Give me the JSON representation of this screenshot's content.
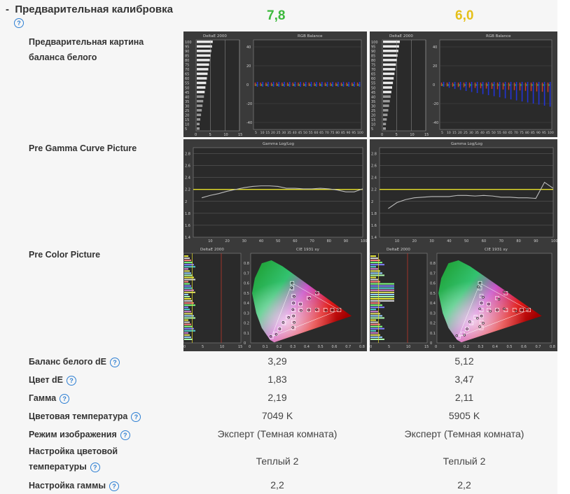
{
  "section": {
    "title": "Предварительная калибровка",
    "collapse": "-"
  },
  "scores": [
    {
      "value": "7,8",
      "color": "#3cb93c"
    },
    {
      "value": "6,0",
      "color": "#e5c019"
    }
  ],
  "rows": {
    "pre_wb_picture": "Предварительная картина баланса белого",
    "pre_gamma_picture": "Pre Gamma Curve Picture",
    "pre_color_picture": "Pre Color Picture"
  },
  "charts": {
    "deltae_title": "DeltaE 2000",
    "rgb_title": "RGB Balance",
    "gamma_title": "Gamma Log/Log",
    "cie_title": "CIE 1931 xy",
    "deltae_y_ticks": [
      "100",
      "95",
      "90",
      "85",
      "80",
      "75",
      "70",
      "65",
      "60",
      "55",
      "50",
      "45",
      "40",
      "35",
      "30",
      "25",
      "20",
      "15",
      "10",
      "5"
    ],
    "deltae_x_ticks": [
      "0",
      "5",
      "10",
      "15"
    ],
    "rgb_y_ticks": [
      "40",
      "20",
      "0",
      "-20",
      "-40"
    ],
    "rgb_x_ticks": [
      "5",
      "10",
      "15",
      "20",
      "25",
      "30",
      "35",
      "40",
      "45",
      "50",
      "55",
      "60",
      "65",
      "70",
      "75",
      "80",
      "85",
      "90",
      "95",
      "100"
    ],
    "gamma_y_ticks": [
      "2.8",
      "2.6",
      "2.4",
      "2.2",
      "2",
      "1.8",
      "1.6",
      "1.4"
    ],
    "gamma_x_ticks": [
      "10",
      "20",
      "30",
      "40",
      "50",
      "60",
      "70",
      "80",
      "90",
      "100"
    ],
    "cie_y_ticks": [
      "0.8",
      "0.7",
      "0.6",
      "0.5",
      "0.4",
      "0.3",
      "0.2",
      "0.1",
      "0"
    ],
    "cie_x_ticks": [
      "0",
      "0.1",
      "0.2",
      "0.3",
      "0.4",
      "0.5",
      "0.6",
      "0.7",
      "0.8"
    ]
  },
  "chart_data": [
    {
      "type": "line",
      "title": "Gamma Log/Log",
      "display": "1",
      "x": [
        5,
        10,
        15,
        20,
        25,
        30,
        35,
        40,
        45,
        50,
        55,
        60,
        65,
        70,
        75,
        80,
        85,
        90,
        95,
        100
      ],
      "values": [
        2.06,
        2.1,
        2.13,
        2.17,
        2.2,
        2.23,
        2.25,
        2.26,
        2.26,
        2.25,
        2.22,
        2.22,
        2.21,
        2.21,
        2.22,
        2.21,
        2.19,
        2.16,
        2.16,
        2.21
      ],
      "target": 2.2,
      "ylim": [
        1.4,
        2.9
      ],
      "xlim": [
        0,
        100
      ]
    },
    {
      "type": "line",
      "title": "Gamma Log/Log",
      "display": "2",
      "x": [
        5,
        10,
        15,
        20,
        25,
        30,
        35,
        40,
        45,
        50,
        55,
        60,
        65,
        70,
        75,
        80,
        85,
        90,
        95,
        100
      ],
      "values": [
        1.88,
        1.98,
        2.03,
        2.06,
        2.07,
        2.08,
        2.08,
        2.08,
        2.1,
        2.1,
        2.09,
        2.1,
        2.09,
        2.07,
        2.07,
        2.06,
        2.06,
        2.05,
        2.32,
        2.22
      ],
      "target": 2.2,
      "ylim": [
        1.4,
        2.9
      ],
      "xlim": [
        0,
        100
      ]
    }
  ],
  "metrics": [
    {
      "label": "Баланс белого dE",
      "help": true,
      "v1": "3,29",
      "v2": "5,12"
    },
    {
      "label": "Цвет dE",
      "help": true,
      "v1": "1,83",
      "v2": "3,47"
    },
    {
      "label": "Гамма",
      "help": true,
      "v1": "2,19",
      "v2": "2,11"
    },
    {
      "label": "Цветовая температура",
      "help": true,
      "v1": "7049 K",
      "v2": "5905 K"
    },
    {
      "label": "Режим изображения",
      "help": true,
      "v1": "Эксперт (Темная комната)",
      "v2": "Эксперт (Темная комната)"
    },
    {
      "label": "Настройка цветовой температуры",
      "help": true,
      "v1": "Теплый 2",
      "v2": "Теплый 2"
    },
    {
      "label": "Настройка гаммы",
      "help": true,
      "v1": "2,2",
      "v2": "2,2"
    }
  ],
  "help_glyph": "?"
}
